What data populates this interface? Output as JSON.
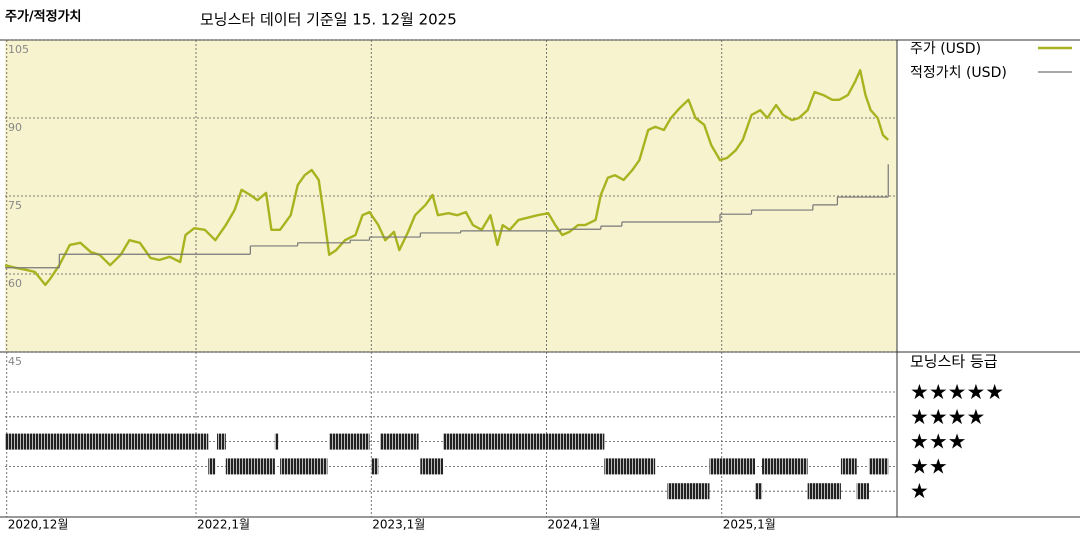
{
  "chart_data": {
    "type": "line",
    "y_label": "주가/적정가치",
    "title": "모닝스타 데이터 기준일 15. 12월 2025",
    "xlim": [
      2020.91,
      2026.0
    ],
    "xticks": [
      {
        "value": 2020.92,
        "label": "2020,12월"
      },
      {
        "value": 2022.0,
        "label": "2022,1월"
      },
      {
        "value": 2023.0,
        "label": "2023,1월"
      },
      {
        "value": 2024.0,
        "label": "2024,1월"
      },
      {
        "value": 2025.0,
        "label": "2025,1월"
      }
    ],
    "ylim": [
      45,
      105
    ],
    "yticks": [
      45,
      60,
      75,
      90,
      105
    ],
    "grid": true,
    "series": [
      {
        "name": "주가 (USD)",
        "color": "#a9b320",
        "x": [
          2020.91,
          2020.97,
          2021.03,
          2021.08,
          2021.14,
          2021.17,
          2021.22,
          2021.28,
          2021.34,
          2021.4,
          2021.45,
          2021.51,
          2021.57,
          2021.62,
          2021.68,
          2021.74,
          2021.79,
          2021.85,
          2021.91,
          2021.94,
          2021.99,
          2022.05,
          2022.11,
          2022.17,
          2022.22,
          2022.26,
          2022.31,
          2022.35,
          2022.4,
          2022.43,
          2022.48,
          2022.54,
          2022.58,
          2022.62,
          2022.66,
          2022.7,
          2022.73,
          2022.76,
          2022.8,
          2022.85,
          2022.91,
          2022.95,
          2022.99,
          2023.04,
          2023.08,
          2023.13,
          2023.16,
          2023.21,
          2023.25,
          2023.31,
          2023.35,
          2023.38,
          2023.44,
          2023.49,
          2023.54,
          2023.58,
          2023.63,
          2023.68,
          2023.72,
          2023.75,
          2023.79,
          2023.84,
          2023.89,
          2023.95,
          2024.01,
          2024.05,
          2024.09,
          2024.13,
          2024.18,
          2024.22,
          2024.28,
          2024.31,
          2024.35,
          2024.39,
          2024.44,
          2024.49,
          2024.53,
          2024.58,
          2024.62,
          2024.67,
          2024.71,
          2024.76,
          2024.81,
          2024.85,
          2024.9,
          2024.94,
          2024.99,
          2025.03,
          2025.08,
          2025.12,
          2025.17,
          2025.22,
          2025.26,
          2025.31,
          2025.35,
          2025.4,
          2025.44,
          2025.49,
          2025.53,
          2025.58,
          2025.63,
          2025.67,
          2025.72,
          2025.76,
          2025.79,
          2025.82,
          2025.85,
          2025.89,
          2025.92,
          2025.95
        ],
        "values": [
          61.7,
          61.2,
          60.8,
          60.4,
          57.9,
          59.2,
          61.7,
          65.6,
          66.0,
          64.2,
          63.7,
          61.7,
          63.7,
          66.5,
          66.0,
          63.1,
          62.7,
          63.3,
          62.3,
          67.5,
          68.8,
          68.5,
          66.5,
          69.4,
          72.3,
          76.2,
          75.2,
          74.2,
          75.6,
          68.5,
          68.5,
          71.3,
          77.1,
          79.0,
          80.0,
          78.1,
          71.3,
          63.7,
          64.6,
          66.5,
          67.5,
          71.3,
          71.9,
          69.4,
          66.5,
          68.1,
          64.6,
          68.1,
          71.3,
          73.3,
          75.2,
          71.3,
          71.7,
          71.3,
          71.9,
          69.4,
          68.5,
          71.3,
          65.6,
          69.4,
          68.5,
          70.4,
          70.8,
          71.3,
          71.7,
          69.4,
          67.5,
          68.1,
          69.4,
          69.4,
          70.4,
          75.2,
          78.5,
          79.0,
          78.1,
          80.0,
          81.9,
          87.7,
          88.3,
          87.7,
          90.0,
          91.9,
          93.5,
          90.0,
          88.7,
          84.8,
          81.9,
          82.3,
          83.8,
          85.8,
          90.6,
          91.5,
          90.0,
          92.5,
          90.6,
          89.6,
          90.0,
          91.5,
          95.0,
          94.4,
          93.5,
          93.5,
          94.4,
          96.9,
          99.2,
          94.4,
          91.5,
          90.0,
          86.7,
          85.8
        ]
      },
      {
        "name": "적정가치 (USD)",
        "color": "#777777",
        "step": "after",
        "x": [
          2020.91,
          2021.22,
          2022.31,
          2022.58,
          2022.88,
          2022.99,
          2023.28,
          2023.51,
          2024.08,
          2024.31,
          2024.43,
          2024.99,
          2025.17,
          2025.52,
          2025.66,
          2025.95
        ],
        "values": [
          61.2,
          63.8,
          65.4,
          66.0,
          66.5,
          67.1,
          67.9,
          68.3,
          68.6,
          69.2,
          70.0,
          71.5,
          72.3,
          73.3,
          74.8,
          81.0
        ]
      }
    ],
    "rating": {
      "title": "모닝스타 등급",
      "levels": [
        "★★★★★",
        "★★★★",
        "★★★",
        "★★",
        "★"
      ],
      "start": [
        2020.91,
        2022.12,
        2022.45,
        2022.76,
        2023.05,
        2023.41,
        2022.07,
        2022.17,
        2022.48,
        2023.0,
        2023.28,
        2024.33,
        2024.93,
        2025.23,
        2025.68,
        2025.84,
        2024.69,
        2025.19,
        2025.49,
        2025.77
      ],
      "end": [
        2022.07,
        2022.17,
        2022.47,
        2022.99,
        2023.27,
        2024.33,
        2022.11,
        2022.45,
        2022.75,
        2023.04,
        2023.41,
        2024.62,
        2025.19,
        2025.49,
        2025.77,
        2025.95,
        2024.93,
        2025.23,
        2025.68,
        2025.84
      ],
      "stars": [
        3,
        3,
        3,
        3,
        3,
        3,
        2,
        2,
        2,
        2,
        2,
        2,
        2,
        2,
        2,
        2,
        1,
        1,
        1,
        1
      ]
    }
  }
}
